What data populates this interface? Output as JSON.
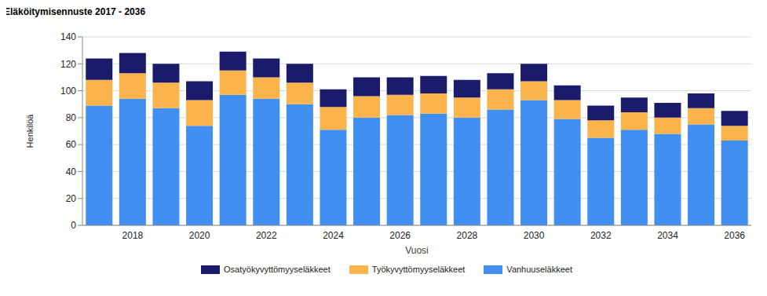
{
  "chart_data": {
    "type": "bar",
    "title": "Eläköitymisennuste 2017 - 2036",
    "x_label": "Vuosi",
    "y_label": "Henkilöä",
    "stacked": true,
    "grid": true,
    "legend": "bottom",
    "categories": [
      null,
      "2018",
      null,
      "2020",
      null,
      "2022",
      null,
      "2024",
      null,
      "2026",
      null,
      "2028",
      null,
      "2030",
      null,
      "2032",
      null,
      "2034",
      null,
      "2036"
    ],
    "ylim": [
      0,
      140
    ],
    "yticks": [
      0,
      20,
      40,
      60,
      80,
      100,
      120,
      140
    ],
    "series": [
      {
        "name": "Vanhuuseläkkeet",
        "color": "#418ff0",
        "values": [
          89,
          94,
          87,
          74,
          97,
          94,
          90,
          71,
          80,
          82,
          83,
          80,
          86,
          93,
          79,
          65,
          71,
          68,
          75,
          63
        ]
      },
      {
        "name": "Työkyvyttömyyseläkkeet",
        "color": "#fbb44b",
        "values": [
          19,
          19,
          19,
          19,
          18,
          16,
          16,
          17,
          16,
          15,
          15,
          15,
          15,
          14,
          14,
          13,
          13,
          12,
          12,
          11
        ]
      },
      {
        "name": "Osatyökyvyttömyyseläkkeet",
        "color": "#1b1b6b",
        "values": [
          16,
          15,
          14,
          14,
          14,
          14,
          14,
          13,
          14,
          13,
          13,
          13,
          12,
          13,
          11,
          11,
          11,
          11,
          11,
          11
        ]
      }
    ]
  }
}
